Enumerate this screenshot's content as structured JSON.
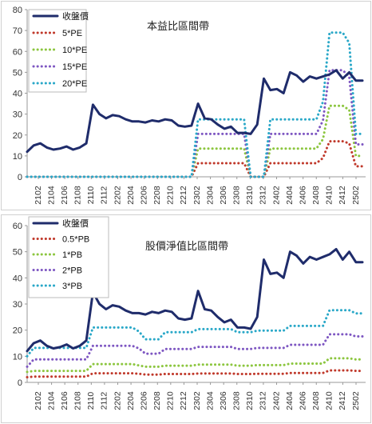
{
  "chart_data": [
    {
      "type": "line",
      "title": "本益比區間帶",
      "ylim": [
        0,
        80
      ],
      "yticks": [
        0,
        10,
        20,
        30,
        40,
        50,
        60,
        70,
        80
      ],
      "xticks": [
        "2102",
        "2104",
        "2106",
        "2108",
        "2110",
        "2112",
        "2202",
        "2204",
        "2206",
        "2208",
        "2210",
        "2212",
        "2302",
        "2304",
        "2306",
        "2308",
        "2310",
        "2312",
        "2402",
        "2404",
        "2406",
        "2408",
        "2410",
        "2412",
        "2502"
      ],
      "legend_position": "top-left",
      "grid": false,
      "colors": {
        "price": "#1f2c6b",
        "band1": "#c0392b",
        "band2": "#8cc63f",
        "band3": "#7e57c2",
        "band4": "#2aa8c8"
      },
      "series": [
        {
          "name": "收盤價",
          "style": "solid",
          "color": "#1f2c6b",
          "values": [
            12,
            15,
            16,
            14,
            13,
            13.5,
            14.5,
            13,
            14,
            16,
            34.5,
            30,
            28,
            29.5,
            29,
            27.5,
            26.5,
            26.5,
            26,
            27,
            26.5,
            27.5,
            27,
            24.5,
            24,
            24.5,
            35,
            28,
            27.5,
            25,
            23,
            24,
            21,
            21,
            20.5,
            25,
            47,
            41.5,
            42,
            40,
            50,
            48.5,
            45.5,
            48,
            47,
            48,
            49,
            51,
            47,
            50,
            46,
            46
          ]
        },
        {
          "name": "5*PE",
          "style": "dotted",
          "color": "#c0392b",
          "values": [
            0,
            0,
            0,
            0,
            0,
            0,
            0,
            0,
            0,
            0,
            0,
            0,
            0,
            0,
            0,
            0,
            0,
            0,
            0,
            0,
            0,
            0,
            0,
            0,
            0,
            0,
            6.5,
            6.5,
            6.5,
            6.5,
            6.5,
            6.5,
            6.5,
            6.5,
            0,
            0,
            0,
            6.5,
            6.5,
            6.5,
            6.5,
            6.5,
            6.5,
            6.5,
            6.5,
            9,
            17,
            17,
            17,
            16,
            5,
            5
          ]
        },
        {
          "name": "10*PE",
          "style": "dotted",
          "color": "#8cc63f",
          "values": [
            0,
            0,
            0,
            0,
            0,
            0,
            0,
            0,
            0,
            0,
            0,
            0,
            0,
            0,
            0,
            0,
            0,
            0,
            0,
            0,
            0,
            0,
            0,
            0,
            0,
            0,
            13.5,
            13.5,
            13.5,
            13.5,
            13.5,
            13.5,
            13.5,
            13.5,
            0,
            0,
            0,
            13.5,
            13.5,
            13.5,
            13.5,
            13.5,
            13.5,
            13.5,
            13.5,
            18,
            34,
            34,
            34,
            32,
            10,
            10
          ]
        },
        {
          "name": "15*PE",
          "style": "dotted",
          "color": "#7e57c2",
          "values": [
            0,
            0,
            0,
            0,
            0,
            0,
            0,
            0,
            0,
            0,
            0,
            0,
            0,
            0,
            0,
            0,
            0,
            0,
            0,
            0,
            0,
            0,
            0,
            0,
            0,
            0,
            20.5,
            20.5,
            20.5,
            20.5,
            20.5,
            20.5,
            20.5,
            20.5,
            0,
            0,
            0,
            20.5,
            20.5,
            20.5,
            20.5,
            20.5,
            20.5,
            20.5,
            20.5,
            27,
            51,
            51,
            51,
            48,
            15.5,
            15.5
          ]
        },
        {
          "name": "20*PE",
          "style": "dotted",
          "color": "#2aa8c8",
          "values": [
            0,
            0,
            0,
            0,
            0,
            0,
            0,
            0,
            0,
            0,
            0,
            0,
            0,
            0,
            0,
            0,
            0,
            0,
            0,
            0,
            0,
            0,
            0,
            0,
            0,
            0,
            27.5,
            27.5,
            27.5,
            27.5,
            27.5,
            27.5,
            27.5,
            27.5,
            0,
            0,
            0,
            27.5,
            27.5,
            27.5,
            27.5,
            27.5,
            27.5,
            27.5,
            27.5,
            36,
            69,
            69,
            69,
            64,
            20.5,
            20.5
          ]
        }
      ]
    },
    {
      "type": "line",
      "title": "股價淨值比區間帶",
      "ylim": [
        0,
        60
      ],
      "yticks": [
        0,
        10,
        20,
        30,
        40,
        50,
        60
      ],
      "xticks": [
        "2102",
        "2104",
        "2106",
        "2108",
        "2110",
        "2112",
        "2202",
        "2204",
        "2206",
        "2208",
        "2210",
        "2212",
        "2302",
        "2304",
        "2306",
        "2308",
        "2310",
        "2312",
        "2402",
        "2404",
        "2406",
        "2408",
        "2410",
        "2412",
        "2502"
      ],
      "legend_position": "top-left",
      "grid": false,
      "colors": {
        "price": "#1f2c6b",
        "band1": "#c0392b",
        "band2": "#8cc63f",
        "band3": "#7e57c2",
        "band4": "#2aa8c8"
      },
      "series": [
        {
          "name": "收盤價",
          "style": "solid",
          "color": "#1f2c6b",
          "values": [
            12,
            15,
            16,
            14,
            13,
            13.5,
            14.5,
            13,
            14,
            16,
            34.5,
            30,
            28,
            29.5,
            29,
            27.5,
            26.5,
            26.5,
            26,
            27,
            26.5,
            27.5,
            27,
            24.5,
            24,
            24.5,
            35,
            28,
            27.5,
            25,
            23,
            24,
            21,
            21,
            20.5,
            25,
            47,
            41.5,
            42,
            40,
            50,
            48.5,
            45.5,
            48,
            47,
            48,
            49,
            51,
            47,
            50,
            46,
            46
          ]
        },
        {
          "name": "0.5*PB",
          "style": "dotted",
          "color": "#c0392b",
          "values": [
            2,
            2.2,
            2.2,
            2.2,
            2.2,
            2.2,
            2.2,
            2.2,
            2.2,
            2.2,
            3.5,
            3.5,
            3.5,
            3.5,
            3.5,
            3.5,
            3.5,
            3.3,
            3,
            3,
            3,
            3.2,
            3.2,
            3.2,
            3.2,
            3.2,
            3.4,
            3.4,
            3.4,
            3.4,
            3.4,
            3.4,
            3.2,
            3.2,
            3.2,
            3.3,
            3.3,
            3.3,
            3.3,
            3.3,
            3.6,
            3.6,
            3.6,
            3.6,
            3.6,
            3.6,
            4.6,
            4.6,
            4.6,
            4.6,
            4.4,
            4.4
          ]
        },
        {
          "name": "1*PB",
          "style": "dotted",
          "color": "#8cc63f",
          "values": [
            4,
            4.4,
            4.4,
            4.4,
            4.4,
            4.4,
            4.4,
            4.4,
            4.4,
            4.4,
            7,
            7,
            7,
            7,
            7,
            7,
            7,
            6.5,
            6,
            6,
            6,
            6.4,
            6.4,
            6.4,
            6.4,
            6.4,
            6.8,
            6.8,
            6.8,
            6.8,
            6.8,
            6.8,
            6.4,
            6.4,
            6.4,
            6.6,
            6.6,
            6.6,
            6.6,
            6.6,
            7.2,
            7.2,
            7.2,
            7.2,
            7.2,
            7.2,
            9.2,
            9.2,
            9.2,
            9.2,
            8.8,
            8.8
          ]
        },
        {
          "name": "2*PB",
          "style": "dotted",
          "color": "#7e57c2",
          "values": [
            6,
            8.8,
            8.8,
            8.8,
            8.8,
            8.8,
            8.8,
            8.8,
            8.8,
            8.8,
            14,
            14,
            14,
            14,
            14,
            14,
            14,
            13,
            11,
            11,
            11,
            12.8,
            12.8,
            12.8,
            12.8,
            12.8,
            13.6,
            13.6,
            13.6,
            13.6,
            13.6,
            13.6,
            12.8,
            12.8,
            12.8,
            13.2,
            13.2,
            13.2,
            13.2,
            13.2,
            14.4,
            14.4,
            14.4,
            14.4,
            14.4,
            14.4,
            18.4,
            18.4,
            18.4,
            18.4,
            17.6,
            17.6
          ]
        },
        {
          "name": "3*PB",
          "style": "dotted",
          "color": "#2aa8c8",
          "values": [
            10,
            13.2,
            13.2,
            13.2,
            13.2,
            13.2,
            13.2,
            13.2,
            13.2,
            13.2,
            21,
            21,
            21,
            21,
            21,
            21,
            21,
            19.5,
            16.5,
            16.5,
            16.5,
            19.2,
            19.2,
            19.2,
            19.2,
            19.2,
            20.4,
            20.4,
            20.4,
            20.4,
            20.4,
            20.4,
            19.2,
            19.2,
            19.2,
            19.8,
            19.8,
            19.8,
            19.8,
            19.8,
            21.6,
            21.6,
            21.6,
            21.6,
            21.6,
            21.6,
            27.6,
            27.6,
            27.6,
            27.6,
            26.4,
            26.4
          ]
        }
      ]
    }
  ]
}
